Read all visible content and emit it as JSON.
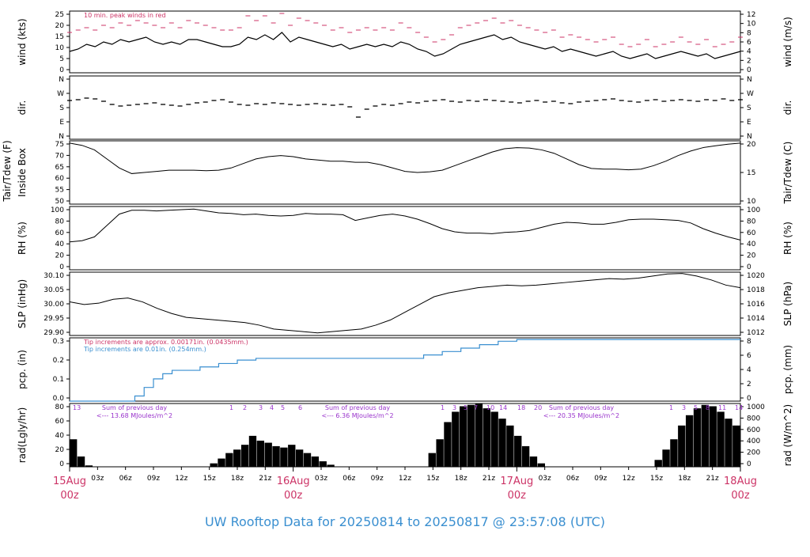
{
  "footer_title": "UW Rooftop Data for 20250814  to  20250817 @ 23:57:08  (UTC)",
  "colors": {
    "axis": "#000000",
    "peak": "#cc3366",
    "blue": "#3a8fd0",
    "purple": "#9933cc",
    "date": "#cc3366"
  },
  "chart_data": [
    {
      "type": "line",
      "name": "wind",
      "ylabel_left": "wind (kts)",
      "ylabel_right": "wind (m/s)",
      "yticks_left": [
        "0",
        "5",
        "10",
        "15",
        "20",
        "25"
      ],
      "yticks_right": [
        "0",
        "2",
        "4",
        "6",
        "8",
        "10",
        "12"
      ],
      "annotations": [
        "10 min. peak winds in red"
      ],
      "ylim": [
        0,
        26
      ],
      "series": [
        {
          "values": [
            9,
            10,
            12,
            11,
            13,
            12,
            14,
            13,
            14,
            15,
            13,
            12,
            13,
            12,
            14,
            14,
            13,
            12,
            11,
            11,
            12,
            15,
            14,
            16,
            14,
            17,
            13,
            15,
            14,
            13,
            12,
            11,
            12,
            10,
            11,
            12,
            11,
            12,
            11,
            13,
            12,
            10,
            9,
            7,
            8,
            10,
            12,
            13,
            14,
            15,
            16,
            14,
            15,
            13,
            12,
            11,
            10,
            11,
            9,
            10,
            9,
            8,
            7,
            8,
            9,
            7,
            6,
            7,
            8,
            6,
            7,
            8,
            9,
            8,
            7,
            8,
            6,
            7,
            8,
            9
          ]
        },
        {
          "values": [
            17,
            18,
            19,
            18,
            20,
            19,
            21,
            20,
            22,
            21,
            20,
            19,
            21,
            19,
            22,
            21,
            20,
            19,
            18,
            18,
            19,
            24,
            22,
            24,
            21,
            25,
            20,
            23,
            22,
            21,
            20,
            18,
            19,
            17,
            18,
            19,
            18,
            19,
            18,
            21,
            19,
            17,
            15,
            13,
            14,
            16,
            19,
            20,
            21,
            22,
            23,
            21,
            22,
            20,
            19,
            18,
            17,
            18,
            15,
            16,
            15,
            14,
            13,
            14,
            15,
            12,
            11,
            12,
            14,
            11,
            12,
            13,
            15,
            13,
            12,
            14,
            11,
            12,
            13,
            15
          ]
        }
      ]
    },
    {
      "type": "scatter",
      "name": "dir",
      "ylabel_left": "dir.",
      "ylabel_right": "dir.",
      "yticks_left": [
        "N",
        "E",
        "S",
        "W",
        "N"
      ],
      "yticks_right": [
        "N",
        "E",
        "S",
        "W",
        "N"
      ],
      "values": [
        225,
        230,
        240,
        235,
        220,
        200,
        190,
        195,
        200,
        205,
        210,
        200,
        195,
        190,
        200,
        210,
        215,
        225,
        230,
        215,
        200,
        195,
        205,
        200,
        210,
        205,
        200,
        195,
        200,
        205,
        200,
        195,
        200,
        185,
        120,
        170,
        190,
        200,
        195,
        205,
        215,
        210,
        220,
        225,
        230,
        220,
        215,
        225,
        220,
        230,
        225,
        220,
        215,
        210,
        220,
        225,
        215,
        220,
        210,
        205,
        215,
        220,
        225,
        230,
        235,
        225,
        220,
        215,
        225,
        230,
        220,
        225,
        230,
        225,
        220,
        230,
        225,
        235,
        225,
        230
      ]
    },
    {
      "type": "line",
      "name": "temp",
      "ylabel_left": "Inside Box",
      "ylabel_outer": "Tair/Tdew (F)",
      "ylabel_right": "Tair/Tdew (C)",
      "yticks_left": [
        "50",
        "55",
        "60",
        "65",
        "70",
        "75"
      ],
      "yticks_right": [
        "10",
        "15",
        "20"
      ],
      "ylim": [
        48,
        76
      ],
      "values": [
        75,
        74,
        72,
        68,
        64,
        61.5,
        62,
        62.5,
        63,
        63,
        63,
        62.8,
        63,
        64,
        66,
        68,
        69,
        69.5,
        69,
        68,
        67.5,
        67,
        67,
        66.5,
        66.5,
        65.5,
        64,
        62.5,
        62,
        62.3,
        63,
        65,
        67,
        69,
        71,
        72.5,
        73,
        72.8,
        72,
        70.5,
        68,
        65.5,
        63.8,
        63.5,
        63.5,
        63.2,
        63.5,
        65,
        67,
        69.5,
        71.5,
        73,
        73.8,
        74.5,
        75
      ]
    },
    {
      "type": "line",
      "name": "rh",
      "ylabel_left": "RH (%)",
      "ylabel_right": "RH (%)",
      "yticks_left": [
        "0",
        "20",
        "40",
        "60",
        "80",
        "100"
      ],
      "yticks_right": [
        "0",
        "20",
        "40",
        "60",
        "80",
        "100"
      ],
      "ylim": [
        0,
        100
      ],
      "values": [
        44,
        46,
        52,
        70,
        88,
        94,
        94,
        93,
        94,
        95,
        96,
        93,
        90,
        89,
        87,
        88,
        86,
        85,
        86,
        89,
        88,
        88,
        87,
        78,
        82,
        86,
        88,
        85,
        80,
        73,
        65,
        60,
        58,
        58,
        57,
        59,
        60,
        62,
        67,
        72,
        75,
        74,
        72,
        72,
        75,
        79,
        80,
        80,
        79,
        78,
        74,
        65,
        58,
        52,
        47
      ]
    },
    {
      "type": "line",
      "name": "slp",
      "ylabel_left": "SLP (inHg)",
      "ylabel_right": "SLP (hPa)",
      "yticks_left": [
        "29.90",
        "29.95",
        "30.00",
        "30.05",
        "30.10"
      ],
      "yticks_right": [
        "1012",
        "1014",
        "1016",
        "1018",
        "1020"
      ],
      "ylim": [
        29.87,
        30.115
      ],
      "values": [
        30.0,
        29.99,
        29.995,
        30.01,
        30.015,
        30.0,
        29.975,
        29.955,
        29.94,
        29.935,
        29.93,
        29.925,
        29.92,
        29.91,
        29.895,
        29.89,
        29.885,
        29.88,
        29.885,
        29.89,
        29.895,
        29.91,
        29.93,
        29.96,
        29.99,
        30.02,
        30.035,
        30.045,
        30.055,
        30.06,
        30.065,
        30.062,
        30.065,
        30.07,
        30.075,
        30.08,
        30.085,
        30.09,
        30.088,
        30.092,
        30.1,
        30.108,
        30.11,
        30.1,
        30.085,
        30.065,
        30.055
      ]
    },
    {
      "type": "area",
      "name": "pcp",
      "ylabel_left": "pcp. (in)",
      "ylabel_right": "pcp. (mm)",
      "yticks_left": [
        "0.0",
        "0.1",
        "0.2",
        "0.3"
      ],
      "yticks_right": [
        "0",
        "2",
        "4",
        "6",
        "8"
      ],
      "ylim": [
        0,
        0.37
      ],
      "annotations": [
        "Tip increments are approx. 0.00171in. (0.0435mm.)",
        "Tip increments are 0.01in. (0.254mm.)"
      ],
      "x": [
        0,
        6,
        7,
        8,
        9,
        10,
        11,
        12,
        14,
        16,
        18,
        20,
        24,
        26,
        36,
        38,
        40,
        42,
        44,
        46,
        48,
        72
      ],
      "values": [
        0,
        0,
        0.03,
        0.08,
        0.13,
        0.16,
        0.18,
        0.18,
        0.2,
        0.22,
        0.24,
        0.25,
        0.25,
        0.25,
        0.25,
        0.27,
        0.29,
        0.31,
        0.33,
        0.35,
        0.36,
        0.36
      ]
    },
    {
      "type": "bar",
      "name": "rad",
      "ylabel_left": "rad(Lgly/hr)",
      "ylabel_right": "rad (W/m^2)",
      "yticks_left": [
        "0",
        "20",
        "40",
        "60",
        "80"
      ],
      "yticks_right": [
        "0",
        "200",
        "400",
        "600",
        "800",
        "1000"
      ],
      "ylim": [
        0,
        92
      ],
      "annotations": [
        {
          "text": "Sum of previous day",
          "sub": "<--- 13.68 MJoules/m^2"
        },
        {
          "text": "Sum of previous day",
          "sub": "<--- 6.36 MJoules/m^2"
        },
        {
          "text": "Sum of previous day",
          "sub": "<--- 20.35 MJoules/m^2"
        }
      ],
      "hour_labels": [
        {
          "day": 0,
          "labels": [
            "13"
          ]
        },
        {
          "day": 1,
          "labels": [
            "1",
            "2",
            "3",
            "4",
            "5",
            "6"
          ]
        },
        {
          "day": 2,
          "labels": [
            "1",
            "3",
            "5",
            "7",
            "10",
            "14",
            "18",
            "20"
          ]
        },
        {
          "day": 3,
          "labels": [
            "1",
            "3",
            "5",
            "8",
            "11",
            "14"
          ]
        }
      ],
      "values": [
        40,
        15,
        2,
        0,
        0,
        0,
        0,
        0,
        0,
        0,
        0,
        0,
        0,
        0,
        0,
        0,
        0,
        0,
        5,
        12,
        20,
        25,
        32,
        45,
        38,
        35,
        30,
        28,
        32,
        25,
        20,
        15,
        8,
        3,
        0,
        0,
        0,
        0,
        0,
        0,
        0,
        0,
        0,
        0,
        0,
        0,
        20,
        40,
        65,
        80,
        88,
        90,
        92,
        85,
        80,
        70,
        60,
        45,
        30,
        15,
        5,
        0,
        0,
        0,
        0,
        0,
        0,
        0,
        0,
        0,
        0,
        0,
        0,
        0,
        0,
        10,
        25,
        40,
        60,
        75,
        85,
        90,
        88,
        80,
        70,
        60
      ]
    },
    {
      "type": "axis",
      "name": "time",
      "ticks": [
        "03z",
        "06z",
        "09z",
        "12z",
        "15z",
        "18z",
        "21z"
      ],
      "dates": [
        {
          "d": "15Aug",
          "z": "00z"
        },
        {
          "d": "16Aug",
          "z": "00z"
        },
        {
          "d": "17Aug",
          "z": "00z"
        },
        {
          "d": "18Aug",
          "z": "00z"
        }
      ]
    }
  ]
}
